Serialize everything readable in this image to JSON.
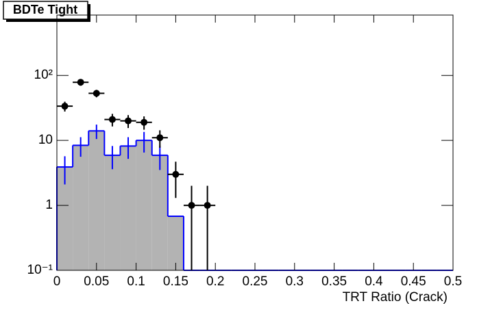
{
  "chart_data": {
    "type": "histogram",
    "title": "BDTe Tight",
    "xlabel": "TRT Ratio (Crack)",
    "bins": [
      0,
      0.02,
      0.04,
      0.06,
      0.08,
      0.1,
      0.12,
      0.14,
      0.16,
      0.18,
      0.2,
      0.22,
      0.24,
      0.26,
      0.28,
      0.3,
      0.32,
      0.34,
      0.36,
      0.38,
      0.4,
      0.42,
      0.44,
      0.46,
      0.48,
      0.5
    ],
    "histogram": {
      "color": "#0000ff",
      "fill": "#b3b3b3",
      "values": [
        3.9,
        8.4,
        14,
        5.9,
        8.2,
        10,
        5.9,
        0.68,
        0,
        0,
        0,
        0,
        0,
        0,
        0,
        0,
        0,
        0,
        0,
        0,
        0,
        0,
        0,
        0,
        0
      ],
      "errors": [
        1.8,
        2.8,
        3.5,
        2.3,
        3,
        3.5,
        2.4,
        0,
        0,
        0,
        0,
        0,
        0,
        0,
        0,
        0,
        0,
        0,
        0,
        0,
        0,
        0,
        0,
        0,
        0
      ]
    },
    "points": {
      "color": "#000000",
      "x": [
        0.01,
        0.03,
        0.05,
        0.07,
        0.09,
        0.11,
        0.13,
        0.15,
        0.17,
        0.19
      ],
      "values": [
        33.6,
        78.5,
        53,
        21,
        20,
        19,
        11,
        3,
        1,
        1
      ],
      "errors": [
        5.8,
        9,
        7,
        4.6,
        4.5,
        4.4,
        3.3,
        1.7,
        1,
        1
      ]
    },
    "log_y": true,
    "xlim": [
      0,
      0.5
    ],
    "ylim": [
      0.1,
      850
    ],
    "xticks": [
      0,
      0.05,
      0.1,
      0.15,
      0.2,
      0.25,
      0.3,
      0.35,
      0.4,
      0.45,
      0.5
    ],
    "yticks": [
      {
        "value": 0.1,
        "label": "10⁻¹"
      },
      1,
      10,
      {
        "value": 100,
        "label": "10²"
      }
    ]
  }
}
